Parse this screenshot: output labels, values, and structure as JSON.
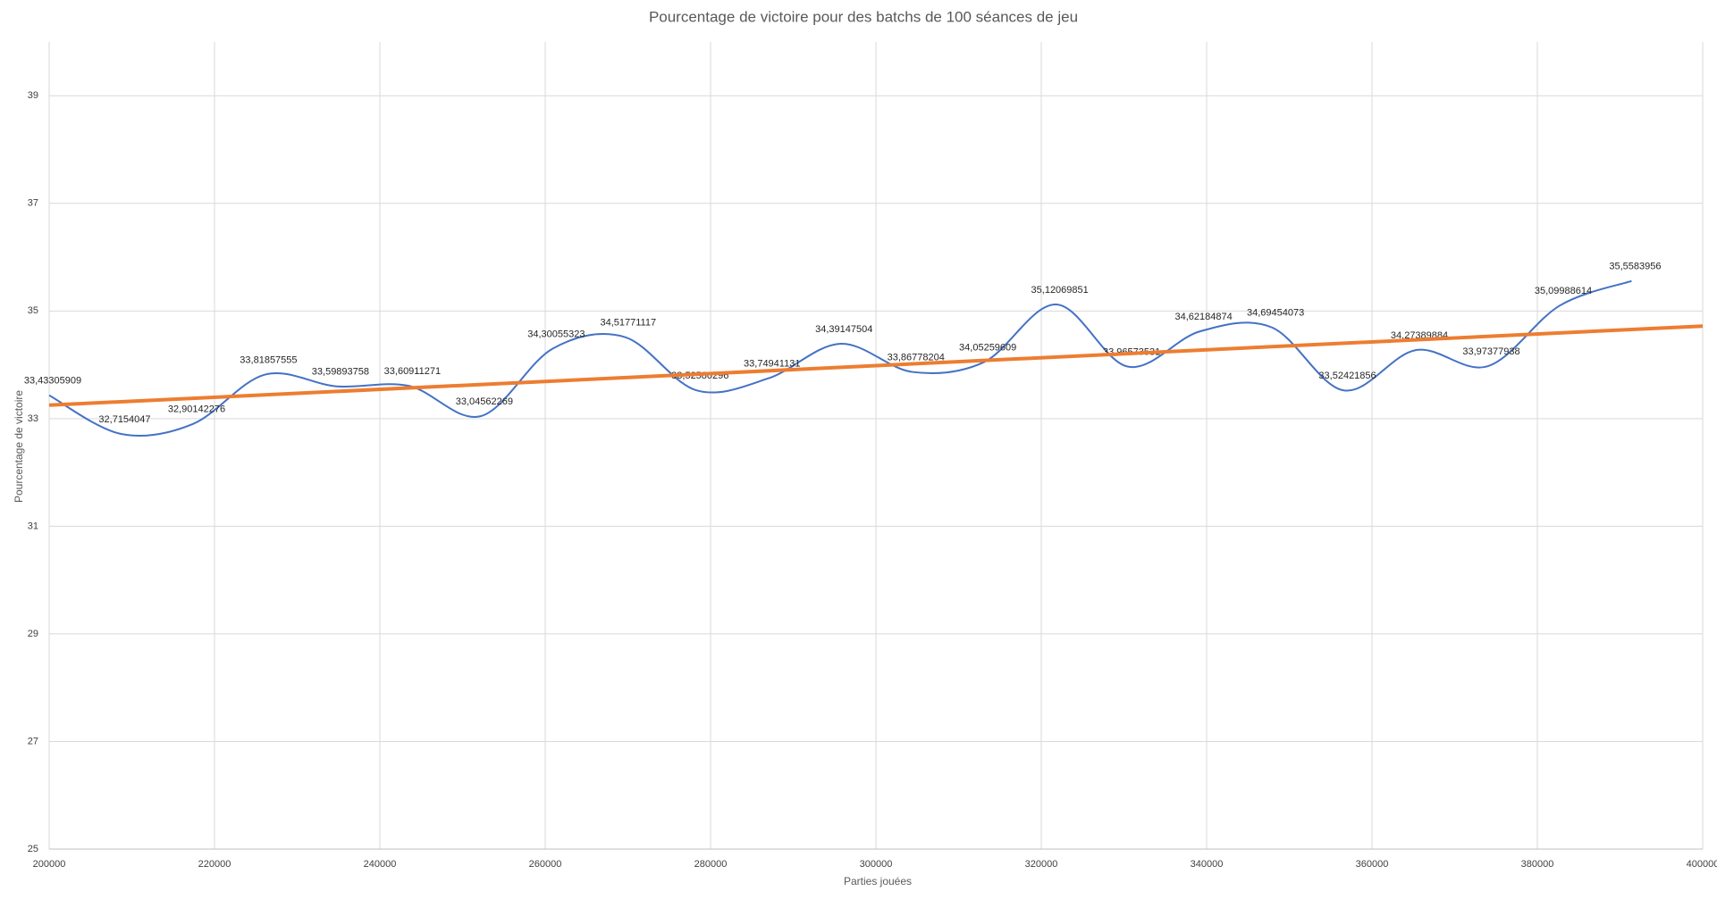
{
  "chart_data": {
    "type": "line",
    "title": "Pourcentage de victoire pour des batchs de 100 séances de jeu",
    "x_label": "Parties jouées",
    "y_label": "Pourcentage de victoire",
    "x": [
      200000,
      208700,
      217400,
      226100,
      234800,
      243500,
      252200,
      260900,
      269600,
      278300,
      287000,
      295700,
      304400,
      313100,
      321800,
      330500,
      339200,
      347900,
      356600,
      365300,
      374000,
      382700,
      391400
    ],
    "series": [
      {
        "color": "#4472c4",
        "values": [
          33.43305909,
          32.7154047,
          32.90142276,
          33.81857555,
          33.59893758,
          33.60911271,
          33.04562269,
          34.30055323,
          34.51771117,
          33.52580296,
          33.74941131,
          34.39147504,
          33.86778204,
          34.05259609,
          35.12069851,
          33.96573531,
          34.62184874,
          34.69454073,
          33.52421856,
          34.27389884,
          33.97377938,
          35.09988614,
          35.5583956
        ],
        "value_labels": [
          "33,43305909",
          "32,7154047",
          "32,90142276",
          "33,81857555",
          "33,59893758",
          "33,60911271",
          "33,04562269",
          "34,30055323",
          "34,51771117",
          "33,52580296",
          "33,74941131",
          "34,39147504",
          "33,86778204",
          "34,05259609",
          "35,12069851",
          "33,96573531",
          "34,62184874",
          "34,69454073",
          "33,52421856",
          "34,27389884",
          "33,97377938",
          "35,09988614",
          "35,5583956"
        ]
      }
    ],
    "trendline": {
      "color": "#ed7d31",
      "x": [
        200000,
        400000
      ],
      "values": [
        33.25,
        34.72
      ]
    },
    "xlim": [
      200000,
      400000
    ],
    "xticks": [
      200000,
      220000,
      240000,
      260000,
      280000,
      300000,
      320000,
      340000,
      360000,
      380000,
      400000
    ],
    "ylim": [
      25,
      40
    ],
    "yticks": [
      25,
      27,
      29,
      31,
      33,
      35,
      37,
      39
    ],
    "grid": true
  }
}
